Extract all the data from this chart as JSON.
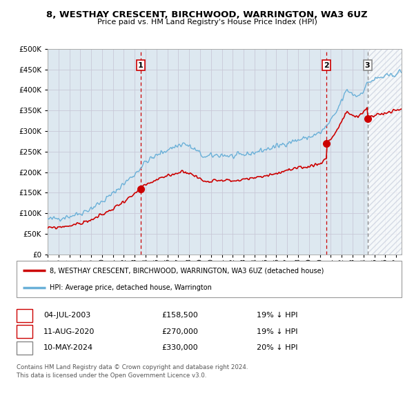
{
  "title": "8, WESTHAY CRESCENT, BIRCHWOOD, WARRINGTON, WA3 6UZ",
  "subtitle": "Price paid vs. HM Land Registry's House Price Index (HPI)",
  "legend_line1": "8, WESTHAY CRESCENT, BIRCHWOOD, WARRINGTON, WA3 6UZ (detached house)",
  "legend_line2": "HPI: Average price, detached house, Warrington",
  "footer1": "Contains HM Land Registry data © Crown copyright and database right 2024.",
  "footer2": "This data is licensed under the Open Government Licence v3.0.",
  "transactions": [
    {
      "num": "1",
      "date": "04-JUL-2003",
      "price": "£158,500",
      "pct": "19% ↓ HPI",
      "year": 2003.54
    },
    {
      "num": "2",
      "date": "11-AUG-2020",
      "price": "£270,000",
      "pct": "19% ↓ HPI",
      "year": 2020.62
    },
    {
      "num": "3",
      "date": "10-MAY-2024",
      "price": "£330,000",
      "pct": "20% ↓ HPI",
      "year": 2024.37
    }
  ],
  "ylim": [
    0,
    500000
  ],
  "yticks": [
    0,
    50000,
    100000,
    150000,
    200000,
    250000,
    300000,
    350000,
    400000,
    450000,
    500000
  ],
  "hpi_color": "#6ab0d8",
  "price_color": "#cc0000",
  "vline_color_red": "#cc0000",
  "vline_color_gray": "#888888",
  "grid_color": "#c8c8d8",
  "background_color": "#dde8f0",
  "hatch_color": "#c0c8d8",
  "xlim_start": 1995.0,
  "xlim_end": 2027.5,
  "hatch_start": 2024.37
}
